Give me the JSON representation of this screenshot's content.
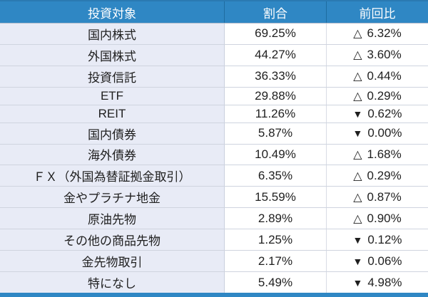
{
  "colors": {
    "header_bg": "#2f87c4",
    "header_text": "#ffffff",
    "header_divider": "#1e6ca0",
    "label_column_bg": "#e8ebf6",
    "value_column_bg": "#ffffff",
    "row_divider": "#cfd4df",
    "body_text": "#1f1f1f",
    "bottom_bar": "#2f87c4"
  },
  "chart_data": {
    "type": "table",
    "columns": [
      "投資対象",
      "割合",
      "前回比"
    ],
    "rows": [
      {
        "target": "国内株式",
        "ratio": "69.25%",
        "direction": "up",
        "change_symbol": "△",
        "change_value": "6.32%"
      },
      {
        "target": "外国株式",
        "ratio": "44.27%",
        "direction": "up",
        "change_symbol": "△",
        "change_value": "3.60%"
      },
      {
        "target": "投資信託",
        "ratio": "36.33%",
        "direction": "up",
        "change_symbol": "△",
        "change_value": "0.44%"
      },
      {
        "target": "ETF",
        "ratio": "29.88%",
        "direction": "up",
        "change_symbol": "△",
        "change_value": "0.29%"
      },
      {
        "target": "REIT",
        "ratio": "11.26%",
        "direction": "down",
        "change_symbol": "▼",
        "change_value": "0.62%"
      },
      {
        "target": "国内債券",
        "ratio": "5.87%",
        "direction": "down",
        "change_symbol": "▼",
        "change_value": "0.00%"
      },
      {
        "target": "海外債券",
        "ratio": "10.49%",
        "direction": "up",
        "change_symbol": "△",
        "change_value": "1.68%"
      },
      {
        "target": "ＦＸ（外国為替証拠金取引）",
        "ratio": "6.35%",
        "direction": "up",
        "change_symbol": "△",
        "change_value": "0.29%"
      },
      {
        "target": "金やプラチナ地金",
        "ratio": "15.59%",
        "direction": "up",
        "change_symbol": "△",
        "change_value": "0.87%"
      },
      {
        "target": "原油先物",
        "ratio": "2.89%",
        "direction": "up",
        "change_symbol": "△",
        "change_value": "0.90%"
      },
      {
        "target": "その他の商品先物",
        "ratio": "1.25%",
        "direction": "down",
        "change_symbol": "▼",
        "change_value": "0.12%"
      },
      {
        "target": "金先物取引",
        "ratio": "2.17%",
        "direction": "down",
        "change_symbol": "▼",
        "change_value": "0.06%"
      },
      {
        "target": "特になし",
        "ratio": "5.49%",
        "direction": "down",
        "change_symbol": "▼",
        "change_value": "4.98%"
      }
    ]
  }
}
